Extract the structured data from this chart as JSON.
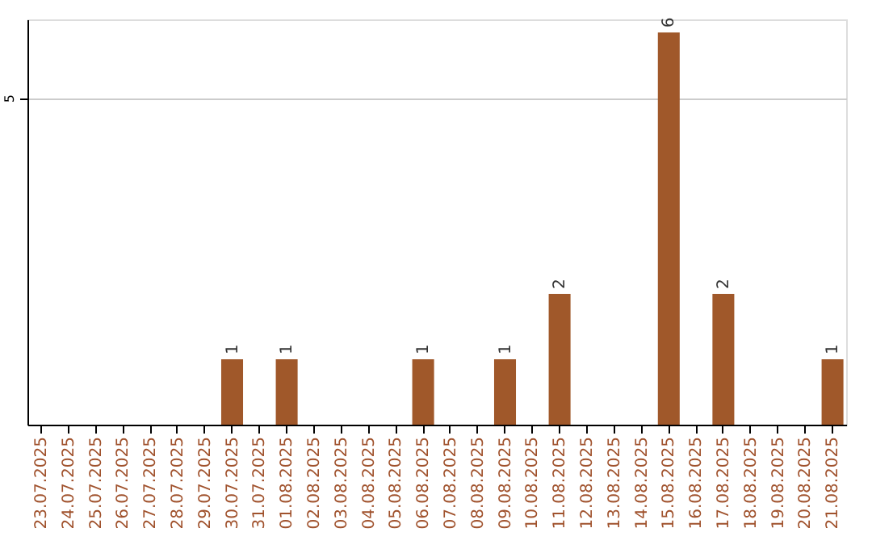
{
  "chart_data": {
    "type": "bar",
    "categories": [
      "23.07.2025",
      "24.07.2025",
      "25.07.2025",
      "26.07.2025",
      "27.07.2025",
      "28.07.2025",
      "29.07.2025",
      "30.07.2025",
      "31.07.2025",
      "01.08.2025",
      "02.08.2025",
      "03.08.2025",
      "04.08.2025",
      "05.08.2025",
      "06.08.2025",
      "07.08.2025",
      "08.08.2025",
      "09.08.2025",
      "10.08.2025",
      "11.08.2025",
      "12.08.2025",
      "13.08.2025",
      "14.08.2025",
      "15.08.2025",
      "16.08.2025",
      "17.08.2025",
      "18.08.2025",
      "19.08.2025",
      "20.08.2025",
      "21.08.2025"
    ],
    "values": [
      0,
      0,
      0,
      0,
      0,
      0,
      0,
      1,
      0,
      1,
      0,
      0,
      0,
      0,
      1,
      0,
      0,
      1,
      0,
      2,
      0,
      0,
      0,
      6,
      0,
      2,
      0,
      0,
      0,
      1
    ],
    "value_labels": [
      null,
      null,
      null,
      null,
      null,
      null,
      null,
      "1",
      null,
      "1",
      null,
      null,
      null,
      null,
      "1",
      null,
      null,
      "1",
      null,
      "2",
      null,
      null,
      null,
      "6",
      null,
      "2",
      null,
      null,
      null,
      "1"
    ],
    "color": "#a0582a",
    "ylim": [
      0,
      6.2
    ],
    "yticks": [
      5
    ],
    "grid": "y"
  }
}
